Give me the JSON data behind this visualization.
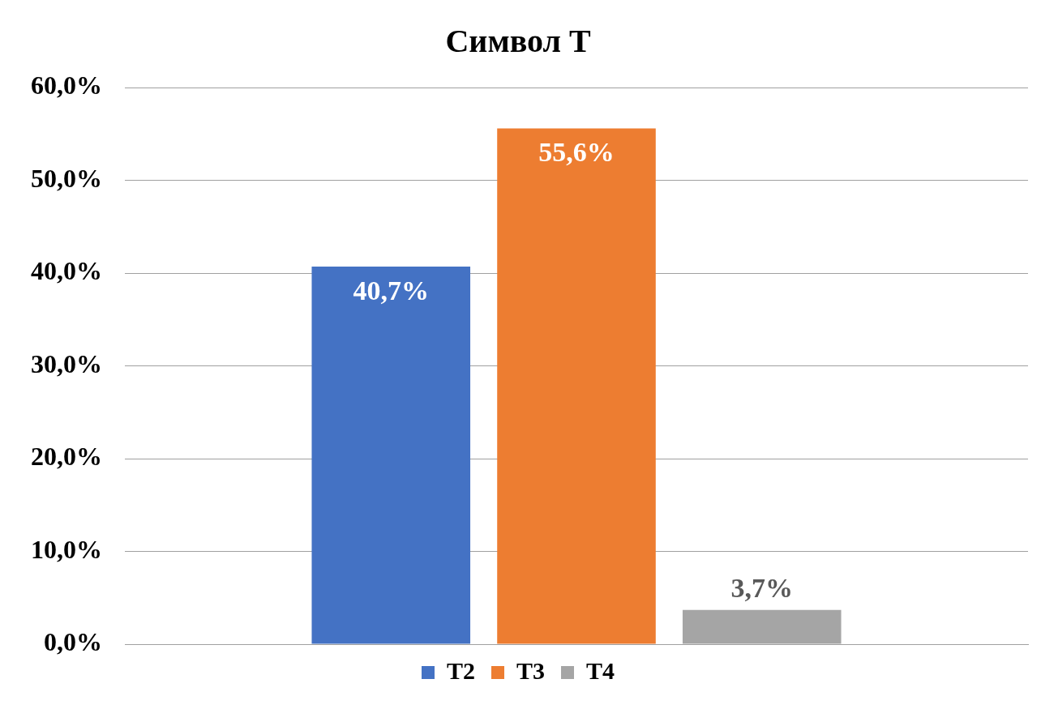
{
  "chart_data": {
    "type": "bar",
    "title": "Символ Т",
    "categories": [
      null
    ],
    "series": [
      {
        "name": "Т2",
        "color": "#4472c4",
        "values": [
          40.7
        ],
        "value_labels": [
          "40,7%"
        ]
      },
      {
        "name": "Т3",
        "color": "#ed7d31",
        "values": [
          55.6
        ],
        "value_labels": [
          "55,6%"
        ]
      },
      {
        "name": "Т4",
        "color": "#a5a5a5",
        "values": [
          3.7
        ],
        "value_labels": [
          "3,7%"
        ]
      }
    ],
    "ylim": [
      0,
      60
    ],
    "yticks": [
      {
        "value": 0,
        "label": "0,0%"
      },
      {
        "value": 10,
        "label": "10,0%"
      },
      {
        "value": 20,
        "label": "20,0%"
      },
      {
        "value": 30,
        "label": "30,0%"
      },
      {
        "value": 40,
        "label": "40,0%"
      },
      {
        "value": 50,
        "label": "50,0%"
      },
      {
        "value": 60,
        "label": "60,0%"
      }
    ],
    "grid": "y",
    "legend": "bottom"
  }
}
